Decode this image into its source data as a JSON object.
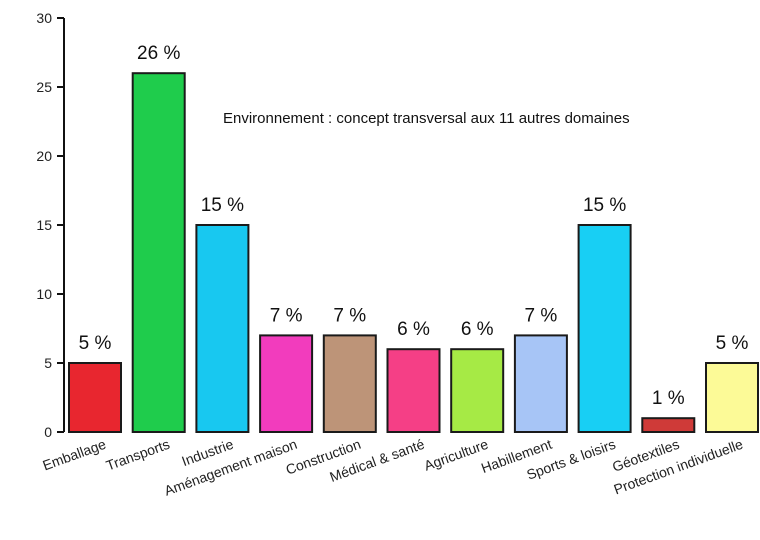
{
  "chart_data": {
    "type": "bar",
    "categories": [
      "Emballage",
      "Transports",
      "Industrie",
      "Aménagement maison",
      "Construction",
      "Médical & santé",
      "Agriculture",
      "Habillement",
      "Sports & loisirs",
      "Géotextiles",
      "Protection individuelle"
    ],
    "values": [
      5,
      26,
      15,
      7,
      7,
      6,
      6,
      7,
      15,
      1,
      5
    ],
    "data_labels": [
      "5 %",
      "26 %",
      "15 %",
      "7 %",
      "7 %",
      "6 %",
      "6 %",
      "7 %",
      "15 %",
      "1 %",
      "5 %"
    ],
    "colors": [
      "#e8262f",
      "#1fcc4c",
      "#18c8f0",
      "#f23cbd",
      "#bd9478",
      "#f53f86",
      "#a6ea45",
      "#a7c5f6",
      "#18cff4",
      "#cf3a38",
      "#fcfa97"
    ],
    "title": "",
    "xlabel": "",
    "ylabel": "",
    "ylim": [
      0,
      30
    ],
    "yticks": [
      0,
      5,
      10,
      15,
      20,
      25,
      30
    ],
    "grid": false,
    "annotation": "Environnement : concept transversal aux 11 autres domaines"
  }
}
